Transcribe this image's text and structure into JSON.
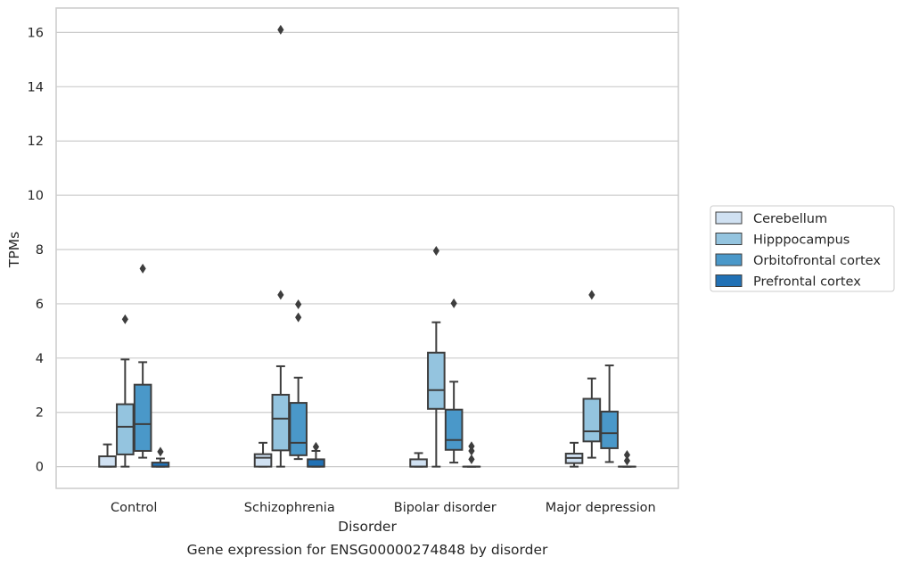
{
  "chart_data": {
    "type": "box",
    "caption": "Gene expression for ENSG00000274848 by disorder",
    "xlabel": "Disorder",
    "ylabel": "TPMs",
    "ylim": [
      -0.8,
      16.9
    ],
    "yticks": [
      0,
      2,
      4,
      6,
      8,
      10,
      12,
      14,
      16
    ],
    "grid": true,
    "legend_position": "right",
    "categories": [
      "Control",
      "Schizophrenia",
      "Bipolar disorder",
      "Major depression"
    ],
    "series": [
      {
        "name": "Cerebellum",
        "color": "#d0e1f2",
        "boxes": [
          {
            "q1": 0.0,
            "median": 0.0,
            "q3": 0.38,
            "whisker_low": 0.0,
            "whisker_high": 0.82,
            "outliers": []
          },
          {
            "q1": 0.0,
            "median": 0.33,
            "q3": 0.46,
            "whisker_low": 0.0,
            "whisker_high": 0.88,
            "outliers": []
          },
          {
            "q1": 0.0,
            "median": 0.0,
            "q3": 0.27,
            "whisker_low": 0.0,
            "whisker_high": 0.5,
            "outliers": []
          },
          {
            "q1": 0.13,
            "median": 0.32,
            "q3": 0.48,
            "whisker_low": 0.0,
            "whisker_high": 0.88,
            "outliers": []
          }
        ]
      },
      {
        "name": "Hipppocampus",
        "color": "#94c4df",
        "boxes": [
          {
            "q1": 0.45,
            "median": 1.47,
            "q3": 2.3,
            "whisker_low": 0.0,
            "whisker_high": 3.95,
            "outliers": [
              5.43
            ]
          },
          {
            "q1": 0.6,
            "median": 1.77,
            "q3": 2.65,
            "whisker_low": 0.0,
            "whisker_high": 3.7,
            "outliers": [
              6.33,
              16.1
            ]
          },
          {
            "q1": 2.13,
            "median": 2.82,
            "q3": 4.2,
            "whisker_low": 0.0,
            "whisker_high": 5.32,
            "outliers": [
              7.95
            ]
          },
          {
            "q1": 0.93,
            "median": 1.3,
            "q3": 2.5,
            "whisker_low": 0.33,
            "whisker_high": 3.25,
            "outliers": [
              6.33
            ]
          }
        ]
      },
      {
        "name": "Orbitofrontal cortex",
        "color": "#4a98c9",
        "boxes": [
          {
            "q1": 0.58,
            "median": 1.57,
            "q3": 3.02,
            "whisker_low": 0.33,
            "whisker_high": 3.85,
            "outliers": [
              7.3
            ]
          },
          {
            "q1": 0.42,
            "median": 0.88,
            "q3": 2.35,
            "whisker_low": 0.28,
            "whisker_high": 3.28,
            "outliers": [
              5.5,
              5.98
            ]
          },
          {
            "q1": 0.62,
            "median": 0.98,
            "q3": 2.1,
            "whisker_low": 0.15,
            "whisker_high": 3.13,
            "outliers": [
              6.02
            ]
          },
          {
            "q1": 0.68,
            "median": 1.23,
            "q3": 2.03,
            "whisker_low": 0.17,
            "whisker_high": 3.73,
            "outliers": []
          }
        ]
      },
      {
        "name": "Prefrontal cortex",
        "color": "#2171b5",
        "boxes": [
          {
            "q1": 0.0,
            "median": 0.0,
            "q3": 0.15,
            "whisker_low": 0.0,
            "whisker_high": 0.3,
            "outliers": [
              0.55
            ]
          },
          {
            "q1": 0.0,
            "median": 0.0,
            "q3": 0.27,
            "whisker_low": 0.0,
            "whisker_high": 0.58,
            "outliers": [
              0.73
            ]
          },
          {
            "q1": 0.0,
            "median": 0.0,
            "q3": 0.0,
            "whisker_low": 0.0,
            "whisker_high": 0.0,
            "outliers": [
              0.27,
              0.58,
              0.75
            ]
          },
          {
            "q1": 0.0,
            "median": 0.0,
            "q3": 0.0,
            "whisker_low": 0.0,
            "whisker_high": 0.0,
            "outliers": [
              0.22,
              0.43
            ]
          }
        ]
      }
    ]
  }
}
